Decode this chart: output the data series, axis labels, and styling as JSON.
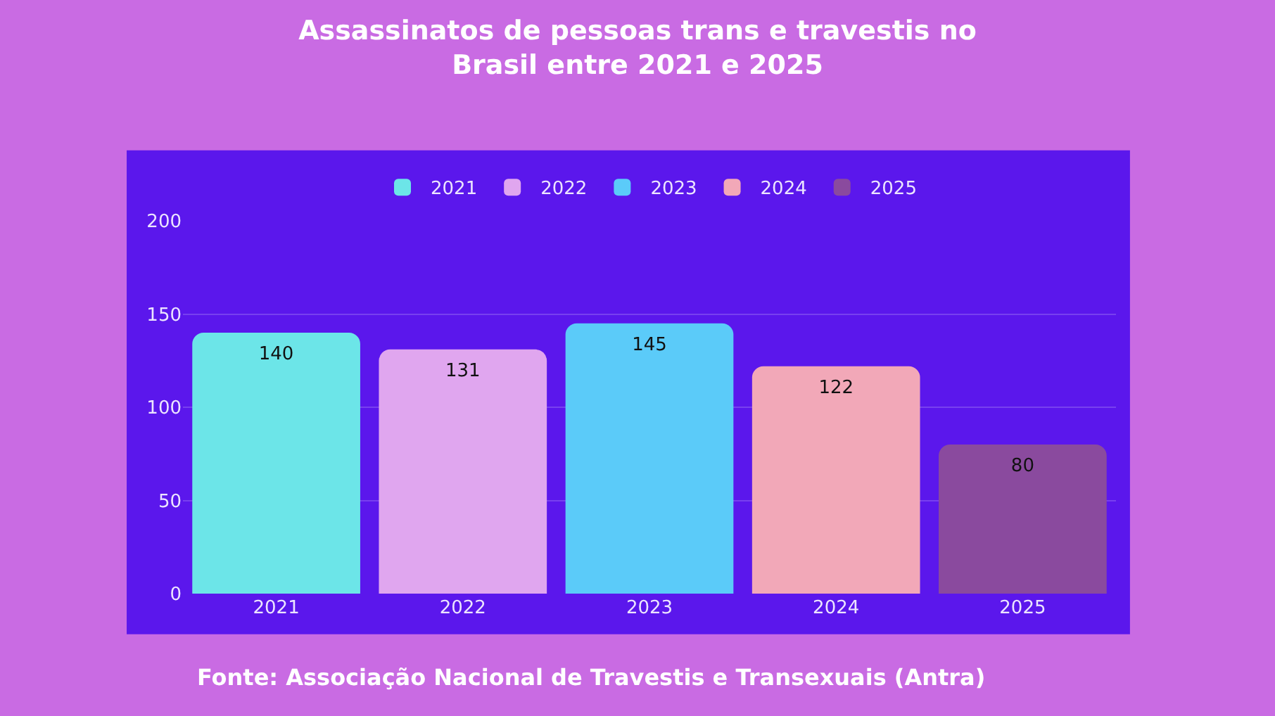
{
  "chart_data": {
    "type": "bar",
    "title": "Assassinatos de pessoas trans e travestis no Brasil entre 2021 e 2025",
    "categories": [
      "2021",
      "2022",
      "2023",
      "2024",
      "2025"
    ],
    "series": [
      {
        "name": "2021",
        "color": "#6ce5e8",
        "values": [
          140,
          null,
          null,
          null,
          null
        ]
      },
      {
        "name": "2022",
        "color": "#e0a6ef",
        "values": [
          null,
          131,
          null,
          null,
          null
        ]
      },
      {
        "name": "2023",
        "color": "#5bcbf9",
        "values": [
          null,
          null,
          145,
          null,
          null
        ]
      },
      {
        "name": "2024",
        "color": "#f2a8b8",
        "values": [
          null,
          null,
          null,
          122,
          null
        ]
      },
      {
        "name": "2025",
        "color": "#8a4a9e",
        "values": [
          null,
          null,
          null,
          null,
          80
        ]
      }
    ],
    "ylim": [
      0,
      200
    ],
    "yticks": [
      0,
      50,
      100,
      150,
      200
    ],
    "grid": "y",
    "legend": "top",
    "data_labels": true,
    "annotations": [
      "Fonte: Associação Nacional de Travestis e Transexuais (Antra)"
    ]
  }
}
